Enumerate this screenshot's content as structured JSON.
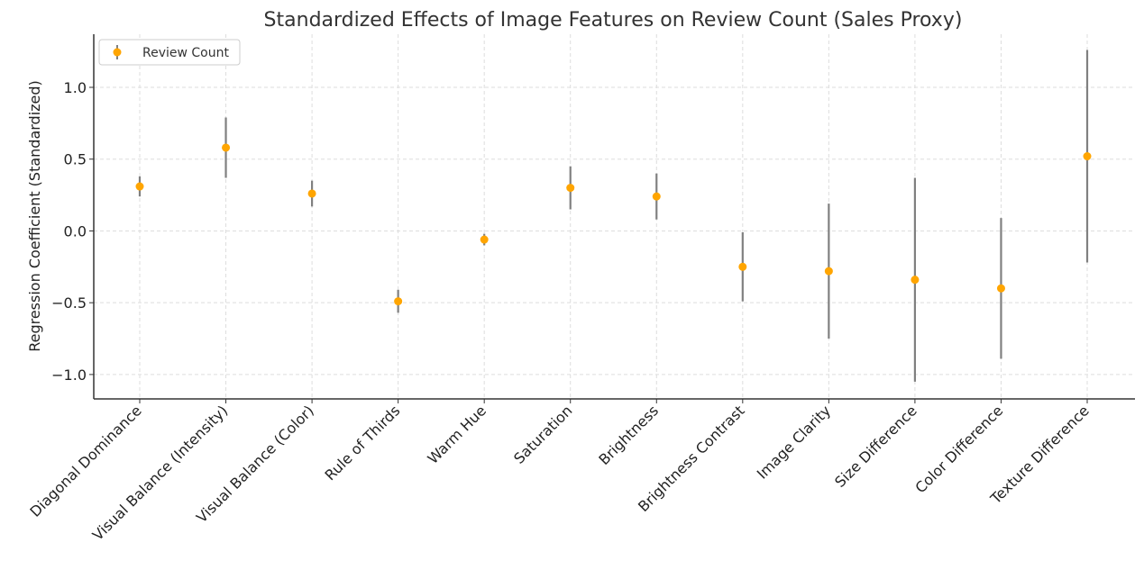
{
  "chart_data": {
    "type": "scatter",
    "title": "Standardized Effects of Image Features on Review Count (Sales Proxy)",
    "ylabel": "Regression Coefficient (Standardized)",
    "xlabel": "",
    "categories": [
      "Diagonal Dominance",
      "Visual Balance (Intensity)",
      "Visual Balance (Color)",
      "Rule of Thirds",
      "Warm Hue",
      "Saturation",
      "Brightness",
      "Brightness Contrast",
      "Image Clarity",
      "Size Difference",
      "Color Difference",
      "Texture Difference"
    ],
    "series": [
      {
        "name": "Review Count",
        "values": [
          0.31,
          0.58,
          0.26,
          -0.49,
          -0.06,
          0.3,
          0.24,
          -0.25,
          -0.28,
          -0.34,
          -0.4,
          0.52
        ],
        "error_low": [
          0.24,
          0.37,
          0.17,
          -0.57,
          -0.1,
          0.15,
          0.08,
          -0.49,
          -0.75,
          -1.05,
          -0.89,
          -0.22
        ],
        "error_high": [
          0.38,
          0.79,
          0.35,
          -0.41,
          -0.02,
          0.45,
          0.4,
          -0.01,
          0.19,
          0.37,
          0.09,
          1.26
        ]
      }
    ],
    "yticks": [
      1.0,
      0.5,
      0.0,
      -0.5,
      -1.0
    ],
    "ytick_labels": [
      "1.0",
      "0.5",
      "0.0",
      "−0.5",
      "−1.0"
    ],
    "ylim": [
      -1.17,
      1.37
    ],
    "grid": true,
    "legend_position": "top-left",
    "colors": {
      "marker": "#FFA500",
      "errorbar": "#808080",
      "grid": "#dddddd",
      "axis": "#333333"
    }
  }
}
